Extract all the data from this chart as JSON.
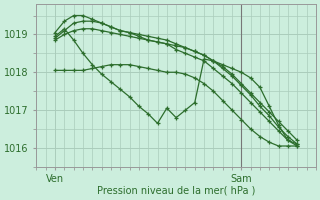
{
  "bg_color": "#cceedd",
  "grid_color": "#aaccbb",
  "line_color": "#2d6e2d",
  "xlabel": "Pression niveau de la mer( hPa )",
  "ylim": [
    1015.5,
    1019.8
  ],
  "yticks": [
    1016,
    1017,
    1018,
    1019
  ],
  "xlim": [
    0,
    30
  ],
  "ven_x": 2,
  "sam_x": 22,
  "vline_x": 22,
  "lines": [
    {
      "x": [
        2,
        3,
        4,
        5,
        6,
        7,
        8,
        9,
        10,
        11,
        12,
        13,
        14,
        15,
        16,
        17,
        18,
        19,
        20,
        21,
        22,
        23,
        24,
        25,
        26,
        27,
        28
      ],
      "y": [
        1018.05,
        1018.05,
        1018.05,
        1018.05,
        1018.1,
        1018.15,
        1018.2,
        1018.2,
        1018.2,
        1018.15,
        1018.1,
        1018.05,
        1018.0,
        1018.0,
        1017.95,
        1017.85,
        1017.7,
        1017.5,
        1017.25,
        1017.0,
        1016.75,
        1016.5,
        1016.3,
        1016.15,
        1016.05,
        1016.05,
        1016.05
      ]
    },
    {
      "x": [
        2,
        3,
        4,
        5,
        6,
        7,
        8,
        9,
        10,
        11,
        12,
        13,
        14,
        15,
        16,
        17,
        18,
        19,
        20,
        21,
        22,
        23,
        24,
        25,
        26,
        27,
        28
      ],
      "y": [
        1018.85,
        1019.0,
        1019.1,
        1019.15,
        1019.15,
        1019.1,
        1019.05,
        1019.0,
        1018.95,
        1018.9,
        1018.85,
        1018.8,
        1018.75,
        1018.7,
        1018.65,
        1018.55,
        1018.45,
        1018.3,
        1018.15,
        1017.95,
        1017.7,
        1017.45,
        1017.2,
        1016.95,
        1016.7,
        1016.45,
        1016.2
      ]
    },
    {
      "x": [
        2,
        3,
        4,
        5,
        6,
        7,
        8,
        9,
        10,
        11,
        12,
        13,
        14,
        15,
        16,
        17,
        18,
        19,
        20,
        21,
        22,
        23,
        24,
        25,
        26,
        27,
        28
      ],
      "y": [
        1018.9,
        1019.1,
        1019.3,
        1019.35,
        1019.35,
        1019.3,
        1019.2,
        1019.1,
        1019.05,
        1019.0,
        1018.95,
        1018.9,
        1018.85,
        1018.75,
        1018.65,
        1018.55,
        1018.45,
        1018.3,
        1018.1,
        1017.9,
        1017.65,
        1017.4,
        1017.1,
        1016.85,
        1016.55,
        1016.3,
        1016.1
      ]
    },
    {
      "x": [
        2,
        3,
        4,
        5,
        6,
        7,
        8,
        9,
        10,
        11,
        12,
        13,
        14,
        15,
        16,
        17,
        18,
        19,
        20,
        21,
        22,
        23,
        24,
        25,
        26,
        27,
        28
      ],
      "y": [
        1019.05,
        1019.35,
        1019.5,
        1019.5,
        1019.4,
        1019.3,
        1019.2,
        1019.1,
        1019.05,
        1018.95,
        1018.85,
        1018.8,
        1018.75,
        1018.6,
        1018.5,
        1018.4,
        1018.3,
        1018.1,
        1017.9,
        1017.7,
        1017.45,
        1017.2,
        1016.95,
        1016.7,
        1016.45,
        1016.2,
        1016.05
      ]
    },
    {
      "x": [
        2,
        3,
        4,
        5,
        6,
        7,
        8,
        9,
        10,
        11,
        12,
        13,
        14,
        15,
        16,
        17,
        18,
        19,
        20,
        21,
        22,
        23,
        24,
        25,
        26,
        27,
        28
      ],
      "y": [
        1018.95,
        1019.15,
        1018.85,
        1018.5,
        1018.2,
        1017.95,
        1017.75,
        1017.55,
        1017.35,
        1017.1,
        1016.9,
        1016.65,
        1017.05,
        1016.8,
        1017.0,
        1017.2,
        1018.35,
        1018.3,
        1018.2,
        1018.1,
        1018.0,
        1017.85,
        1017.6,
        1017.1,
        1016.6,
        1016.2,
        1016.1
      ]
    }
  ]
}
